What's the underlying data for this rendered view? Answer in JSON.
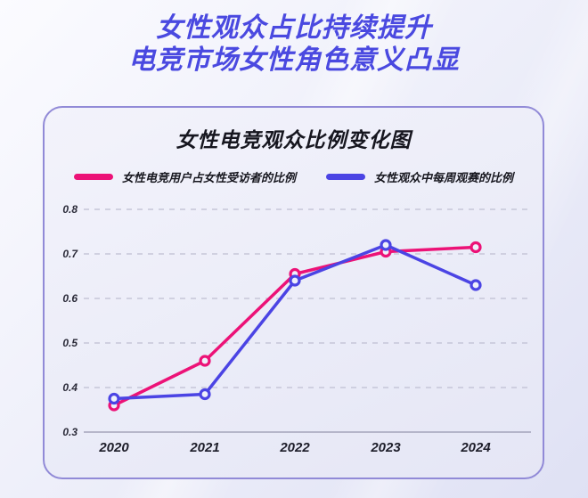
{
  "header": {
    "title_line1": "女性观众占比持续提升",
    "title_line2": "电竞市场女性角色意义凸显"
  },
  "chart_card": {
    "title": "女性电竞观众比例变化图"
  },
  "colors": {
    "header_blue": "#4a49e0",
    "series_pink": "#ec1277",
    "series_blue": "#4b44e4",
    "card_border": "#918ad7",
    "grid_dashed": "#c6c6d8",
    "axis_line": "#a4a4ba",
    "tick_text": "#2c2c3a"
  },
  "chart_data": {
    "type": "line",
    "title": "女性电竞观众比例变化图",
    "categories": [
      "2020",
      "2021",
      "2022",
      "2023",
      "2024"
    ],
    "series": [
      {
        "name": "女性电竞用户占女性受访者的比例",
        "color": "#ec1277",
        "values": [
          0.36,
          0.46,
          0.655,
          0.705,
          0.715
        ]
      },
      {
        "name": "女性观众中每周观赛的比例",
        "color": "#4b44e4",
        "values": [
          0.375,
          0.385,
          0.64,
          0.72,
          0.63
        ]
      }
    ],
    "xlabel": "",
    "ylabel": "",
    "ylim": [
      0.3,
      0.8
    ],
    "yticks": [
      0.8,
      0.7,
      0.6,
      0.5,
      0.4,
      0.3
    ],
    "grid": "horizontal-dashed",
    "legend_position": "top",
    "marker": "open-circle"
  }
}
